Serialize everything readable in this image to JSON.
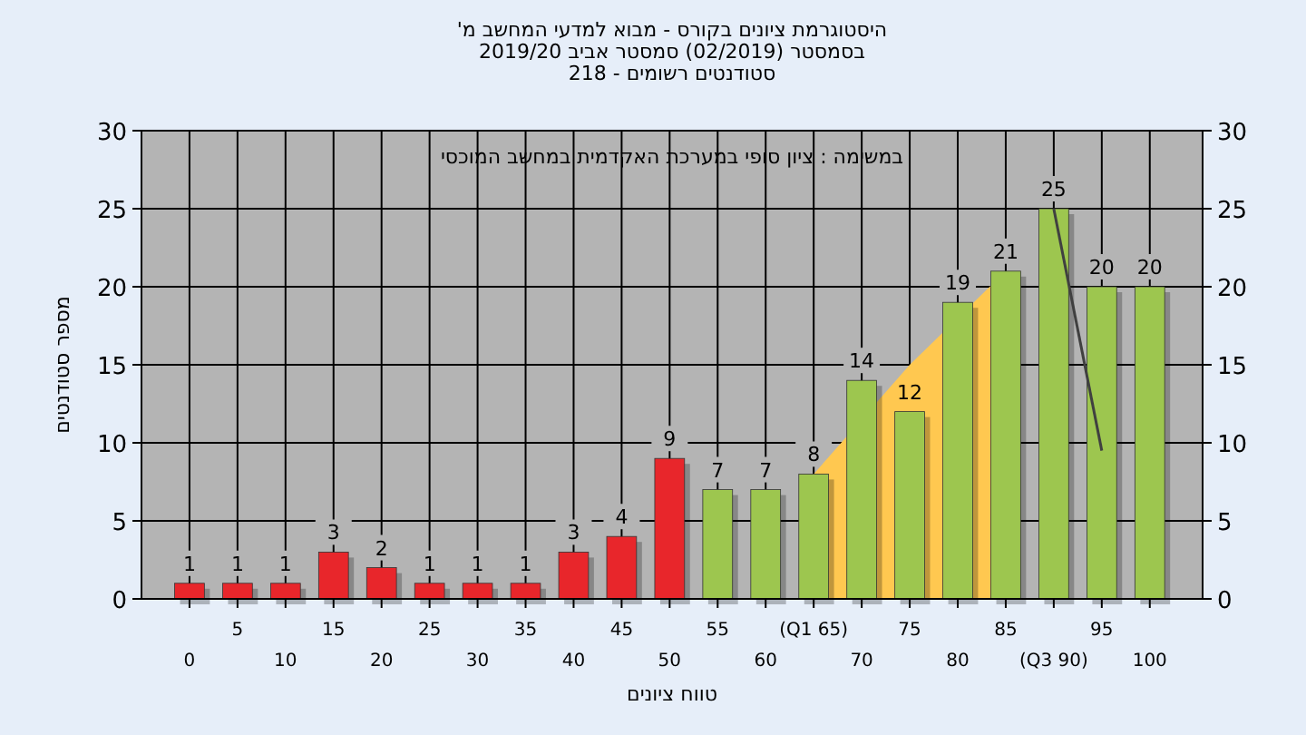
{
  "chart_data": {
    "type": "bar",
    "title": "היסטוגרמת ציונים בקורס - מבוא למדעי המחשב מ'",
    "subtitle": "בסמסטר (02/2019) סמסטר אביב 2019/20\nסטודנטים רשומים - 218",
    "xlabel": "טווח ציונים",
    "ylabel": "מספר סטודנטים",
    "annotations": [
      "במשימה : ציון סופי במערכת האקדמית במחשב המוכסי"
    ],
    "categories": [
      "0",
      "5",
      "10",
      "15",
      "20",
      "25",
      "30",
      "35",
      "40",
      "45",
      "50",
      "55",
      "60",
      "(Q1 65)",
      "70",
      "75",
      "80",
      "85",
      "(Q3 90)",
      "95",
      "100"
    ],
    "series": [
      {
        "type": "area",
        "color": "#ffc850",
        "values": [
          null,
          null,
          null,
          null,
          null,
          null,
          null,
          null,
          null,
          null,
          null,
          null,
          null,
          8,
          null,
          15,
          null,
          21,
          null,
          null,
          null
        ]
      },
      {
        "type": "line",
        "color": "#404040",
        "values": [
          null,
          null,
          null,
          null,
          null,
          null,
          null,
          null,
          null,
          null,
          null,
          null,
          null,
          null,
          null,
          null,
          null,
          null,
          25,
          9.5,
          null
        ]
      },
      {
        "data_labels": true,
        "colors": [
          "#e8262b",
          "#e8262b",
          "#e8262b",
          "#e8262b",
          "#e8262b",
          "#e8262b",
          "#e8262b",
          "#e8262b",
          "#e8262b",
          "#e8262b",
          "#e8262b",
          "#9dc64f",
          "#9dc64f",
          "#9dc64f",
          "#9dc64f",
          "#9dc64f",
          "#9dc64f",
          "#9dc64f",
          "#9dc64f",
          "#9dc64f",
          "#9dc64f"
        ],
        "values": [
          1,
          1,
          1,
          3,
          2,
          1,
          1,
          1,
          3,
          4,
          9,
          7,
          7,
          8,
          14,
          12,
          19,
          21,
          25,
          20,
          20
        ]
      }
    ],
    "ylim": [
      0,
      30
    ],
    "yticks": [
      0,
      5,
      10,
      15,
      20,
      25,
      30
    ],
    "y2lim": [
      0,
      30
    ],
    "y2ticks": [
      0,
      5,
      10,
      15,
      20,
      25,
      30
    ],
    "grid": true
  }
}
